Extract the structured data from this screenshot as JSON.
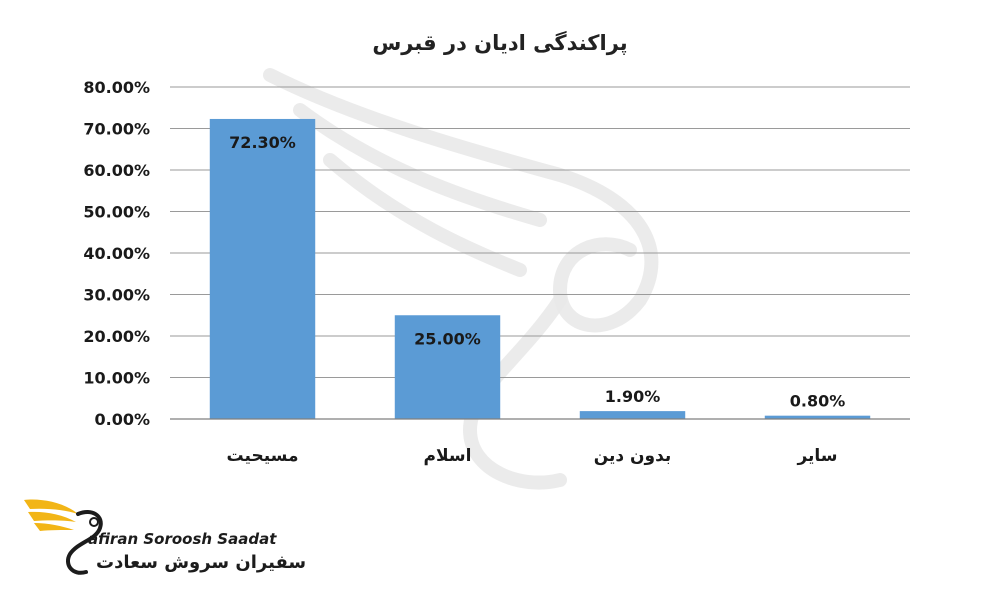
{
  "chart_data": {
    "type": "bar",
    "title": "پراکندگی ادیان در قبرس",
    "categories": [
      "مسیحیت",
      "اسلام",
      "بدون دین",
      "سایر"
    ],
    "values": [
      72.3,
      25.0,
      1.9,
      0.8
    ],
    "data_labels": [
      "72.30%",
      "25.00%",
      "1.90%",
      "0.80%"
    ],
    "yticks": [
      "0.00%",
      "10.00%",
      "20.00%",
      "30.00%",
      "40.00%",
      "50.00%",
      "60.00%",
      "70.00%",
      "80.00%"
    ],
    "ylim": [
      0,
      80
    ],
    "grid": true,
    "legend": "none",
    "bar_color": "#5b9bd5"
  },
  "logo": {
    "name_en": "afiran Soroosh Saadat",
    "name_fa": "سفیران سروش سعادت",
    "accent_color": "#f2b516"
  }
}
